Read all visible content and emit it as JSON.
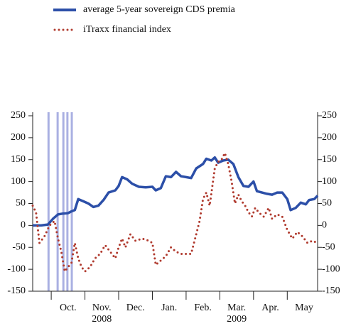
{
  "chart_data": {
    "type": "line",
    "legend": "top-left",
    "xlim": [
      -0.55,
      7.9
    ],
    "xticks": [
      {
        "value": 0.5,
        "label": "Oct."
      },
      {
        "value": 1.5,
        "label": "Nov.",
        "sublabel": "2008"
      },
      {
        "value": 2.5,
        "label": "Dec."
      },
      {
        "value": 3.5,
        "label": "Jan."
      },
      {
        "value": 4.5,
        "label": "Feb."
      },
      {
        "value": 5.5,
        "label": "Mar.",
        "sublabel": "2009"
      },
      {
        "value": 6.5,
        "label": "Apr."
      },
      {
        "value": 7.5,
        "label": "May"
      }
    ],
    "ylim": [
      -150,
      250
    ],
    "yticks": [
      -150,
      -100,
      -50,
      0,
      50,
      100,
      150,
      200,
      250
    ],
    "y2lim": [
      -150,
      250
    ],
    "y2ticks": [
      -150,
      -100,
      -50,
      0,
      50,
      100,
      150,
      200,
      250
    ],
    "vlines": {
      "color": "#aab0e2",
      "x": [
        -0.08,
        0.19,
        0.36,
        0.48,
        0.61
      ]
    },
    "series": [
      {
        "name": "average 5-year sovereign CDS premia",
        "color": "#2c4fa8",
        "style": "solid",
        "x": [
          -0.55,
          -0.3,
          -0.1,
          0.05,
          0.2,
          0.35,
          0.5,
          0.6,
          0.7,
          0.8,
          0.95,
          1.1,
          1.25,
          1.4,
          1.55,
          1.7,
          1.9,
          2.0,
          2.1,
          2.25,
          2.4,
          2.6,
          2.8,
          3.0,
          3.1,
          3.25,
          3.4,
          3.55,
          3.7,
          3.85,
          4.0,
          4.15,
          4.3,
          4.5,
          4.6,
          4.75,
          4.85,
          4.95,
          5.1,
          5.25,
          5.4,
          5.55,
          5.7,
          5.85,
          6.0,
          6.1,
          6.25,
          6.4,
          6.55,
          6.7,
          6.85,
          7.0,
          7.1,
          7.25,
          7.4,
          7.55,
          7.65,
          7.8,
          7.9
        ],
        "values": [
          0,
          0,
          2,
          15,
          25,
          27,
          28,
          32,
          35,
          60,
          55,
          50,
          42,
          45,
          58,
          75,
          80,
          90,
          110,
          105,
          95,
          88,
          87,
          88,
          80,
          85,
          112,
          110,
          122,
          112,
          110,
          108,
          130,
          140,
          152,
          148,
          155,
          143,
          148,
          150,
          140,
          110,
          90,
          88,
          100,
          78,
          75,
          72,
          70,
          75,
          75,
          60,
          35,
          40,
          52,
          48,
          58,
          60,
          68
        ]
      },
      {
        "name": "iTraxx financial index",
        "color": "#b03a2e",
        "style": "dotted",
        "x": [
          -0.55,
          -0.45,
          -0.35,
          -0.2,
          -0.05,
          0.1,
          0.2,
          0.3,
          0.4,
          0.5,
          0.6,
          0.7,
          0.8,
          0.9,
          1.0,
          1.15,
          1.3,
          1.45,
          1.6,
          1.75,
          1.9,
          2.0,
          2.1,
          2.2,
          2.35,
          2.5,
          2.7,
          2.9,
          3.0,
          3.1,
          3.25,
          3.4,
          3.55,
          3.7,
          3.85,
          4.0,
          4.15,
          4.3,
          4.4,
          4.5,
          4.6,
          4.7,
          4.85,
          4.95,
          5.05,
          5.15,
          5.25,
          5.35,
          5.45,
          5.55,
          5.65,
          5.75,
          5.85,
          5.95,
          6.05,
          6.15,
          6.3,
          6.45,
          6.55,
          6.7,
          6.85,
          7.0,
          7.15,
          7.3,
          7.45,
          7.6,
          7.75,
          7.9
        ],
        "values": [
          45,
          30,
          -40,
          -25,
          0,
          10,
          -30,
          -60,
          -105,
          -95,
          -85,
          -40,
          -75,
          -95,
          -105,
          -95,
          -75,
          -65,
          -45,
          -60,
          -75,
          -50,
          -30,
          -50,
          -20,
          -35,
          -30,
          -35,
          -40,
          -90,
          -80,
          -70,
          -50,
          -60,
          -65,
          -65,
          -65,
          -20,
          10,
          60,
          75,
          45,
          130,
          145,
          150,
          165,
          140,
          100,
          50,
          70,
          55,
          45,
          30,
          20,
          40,
          30,
          20,
          40,
          15,
          25,
          20,
          -10,
          -30,
          -15,
          -25,
          -40,
          -35,
          -40
        ]
      }
    ]
  }
}
